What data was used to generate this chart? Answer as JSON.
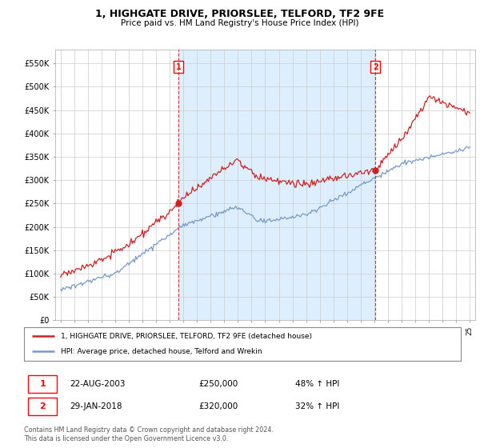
{
  "title": "1, HIGHGATE DRIVE, PRIORSLEE, TELFORD, TF2 9FE",
  "subtitle": "Price paid vs. HM Land Registry's House Price Index (HPI)",
  "ylabel_ticks": [
    0,
    50000,
    100000,
    150000,
    200000,
    250000,
    300000,
    350000,
    400000,
    450000,
    500000,
    550000
  ],
  "ytick_labels": [
    "£0",
    "£50K",
    "£100K",
    "£150K",
    "£200K",
    "£250K",
    "£300K",
    "£350K",
    "£400K",
    "£450K",
    "£500K",
    "£550K"
  ],
  "ylim": [
    0,
    580000
  ],
  "xlim_start": 1994.6,
  "xlim_end": 2025.4,
  "sale1_x": 2003.64,
  "sale1_y": 250000,
  "sale1_label": "22-AUG-2003",
  "sale1_price": "£250,000",
  "sale1_hpi": "48% ↑ HPI",
  "sale2_x": 2018.08,
  "sale2_y": 320000,
  "sale2_label": "29-JAN-2018",
  "sale2_price": "£320,000",
  "sale2_hpi": "32% ↑ HPI",
  "red_line_color": "#cc2222",
  "blue_line_color": "#7799cc",
  "shade_color": "#ddeeff",
  "background_color": "#ffffff",
  "grid_color": "#cccccc",
  "legend1": "1, HIGHGATE DRIVE, PRIORSLEE, TELFORD, TF2 9FE (detached house)",
  "legend2": "HPI: Average price, detached house, Telford and Wrekin",
  "footer1": "Contains HM Land Registry data © Crown copyright and database right 2024.",
  "footer2": "This data is licensed under the Open Government Licence v3.0."
}
